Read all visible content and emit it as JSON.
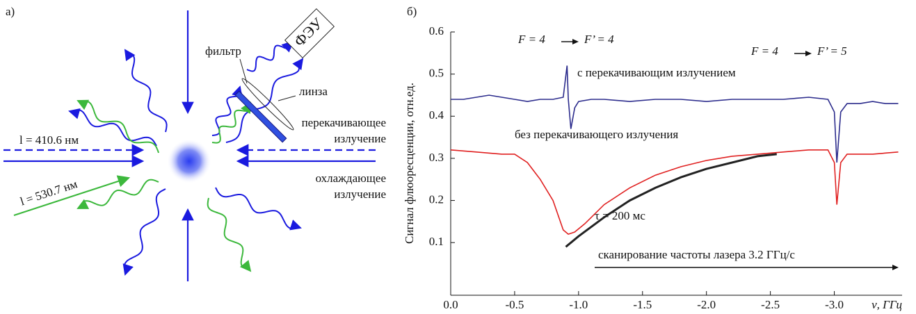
{
  "panel_a": {
    "label": "а)",
    "wavelength_1": "l = 410.6 нм",
    "wavelength_2": "l = 530.7 нм",
    "filter": "фильтр",
    "pmt": "ФЭУ",
    "lens": "линза",
    "repump": [
      "перекачивающее",
      "излучение"
    ],
    "cooling": [
      "охлаждающее",
      "излучение"
    ]
  },
  "chart_data": {
    "type": "line",
    "panel_label": "б)",
    "ylabel": "Сигнал флюоресценции, отн.ед.",
    "xlabel": "ν, ГГц",
    "xlim": [
      0,
      -3.53
    ],
    "ylim": [
      -0.025,
      0.6
    ],
    "xticks": [
      {
        "value": 0,
        "label": "0.0"
      },
      -0.5,
      {
        "value": -1,
        "label": "-1.0"
      },
      -1.5,
      {
        "value": -2,
        "label": "-2.0"
      },
      -2.5,
      {
        "value": -3,
        "label": "-3.0"
      }
    ],
    "yticks": [
      0.1,
      0.2,
      0.3,
      0.4,
      0.5,
      0.6
    ],
    "annotations": [
      "F = 4",
      "F’ = 4",
      "F = 4",
      "F’ = 5",
      "с перекачивающим излучением",
      "без перекачивающего излучения",
      "τ = 200 мс",
      "сканирование частоты лазера 3.2 ГГц/с"
    ],
    "series": [
      {
        "color": "#2b2b8c",
        "x": [
          0,
          -0.1,
          -0.2,
          -0.3,
          -0.4,
          -0.5,
          -0.6,
          -0.7,
          -0.8,
          -0.88,
          -0.91,
          -0.92,
          -0.94,
          -0.97,
          -1.0,
          -1.1,
          -1.2,
          -1.4,
          -1.6,
          -1.8,
          -2.0,
          -2.2,
          -2.4,
          -2.6,
          -2.8,
          -2.95,
          -3.0,
          -3.02,
          -3.05,
          -3.1,
          -3.2,
          -3.3,
          -3.4,
          -3.5
        ],
        "values": [
          0.44,
          0.44,
          0.445,
          0.45,
          0.445,
          0.44,
          0.435,
          0.44,
          0.44,
          0.445,
          0.52,
          0.44,
          0.37,
          0.42,
          0.435,
          0.44,
          0.44,
          0.435,
          0.44,
          0.44,
          0.435,
          0.44,
          0.44,
          0.44,
          0.445,
          0.44,
          0.41,
          0.29,
          0.41,
          0.43,
          0.43,
          0.435,
          0.43,
          0.43
        ]
      },
      {
        "color": "#e02020",
        "x": [
          0,
          -0.2,
          -0.4,
          -0.5,
          -0.6,
          -0.7,
          -0.8,
          -0.88,
          -0.92,
          -0.97,
          -1.05,
          -1.2,
          -1.4,
          -1.6,
          -1.8,
          -2.0,
          -2.2,
          -2.4,
          -2.6,
          -2.8,
          -2.95,
          -3.0,
          -3.02,
          -3.05,
          -3.1,
          -3.3,
          -3.5
        ],
        "values": [
          0.32,
          0.315,
          0.31,
          0.31,
          0.29,
          0.25,
          0.2,
          0.13,
          0.12,
          0.125,
          0.145,
          0.19,
          0.23,
          0.26,
          0.28,
          0.295,
          0.305,
          0.31,
          0.315,
          0.32,
          0.32,
          0.29,
          0.19,
          0.29,
          0.31,
          0.31,
          0.315
        ]
      },
      {
        "color": "#222222",
        "x": [
          -0.9,
          -1.0,
          -1.2,
          -1.4,
          -1.6,
          -1.8,
          -2.0,
          -2.2,
          -2.4,
          -2.55
        ],
        "values": [
          0.09,
          0.115,
          0.16,
          0.2,
          0.23,
          0.255,
          0.275,
          0.29,
          0.305,
          0.31
        ]
      }
    ]
  }
}
